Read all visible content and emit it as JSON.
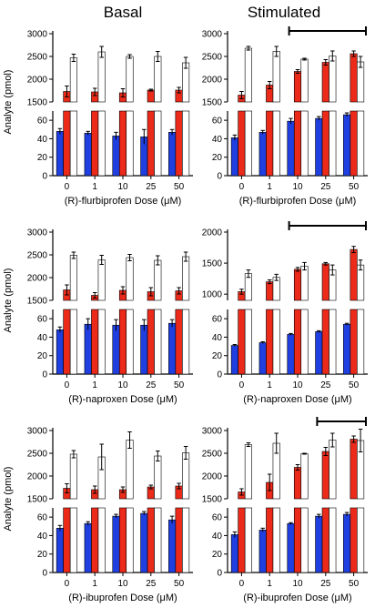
{
  "column_titles": [
    "Basal",
    "Stimulated"
  ],
  "y_axis_label": "Analyte (pmol)",
  "colors": {
    "blue": "#1f3fe0",
    "red": "#ec2a1a",
    "white": "#ffffff",
    "outline": "#000000"
  },
  "chart_data": [
    {
      "type": "bar",
      "row": 0,
      "col": 0,
      "condition": "Basal",
      "xlabel": "(R)-flurbiprofen Dose (μM)",
      "categories": [
        "0",
        "1",
        "10",
        "25",
        "50"
      ],
      "upper_ylim": [
        1500,
        3000
      ],
      "upper_yticks": [
        1500,
        2000,
        2500,
        3000
      ],
      "lower_ylim": [
        0,
        70
      ],
      "lower_yticks": [
        0,
        20,
        40,
        60
      ],
      "series": [
        {
          "color": "blue",
          "values": [
            48,
            46,
            43,
            42,
            47
          ],
          "errors": [
            3,
            2,
            4,
            8,
            3
          ]
        },
        {
          "color": "red",
          "values": [
            1730,
            1720,
            1700,
            1760,
            1760
          ],
          "errors": [
            120,
            80,
            90,
            20,
            60
          ]
        },
        {
          "color": "white",
          "values": [
            2470,
            2600,
            2500,
            2500,
            2360
          ],
          "errors": [
            80,
            120,
            40,
            110,
            120
          ]
        }
      ],
      "significance_bar": false
    },
    {
      "type": "bar",
      "row": 0,
      "col": 1,
      "condition": "Stimulated",
      "xlabel": "(R)-flurbiprofen Dose (μM)",
      "categories": [
        "0",
        "1",
        "10",
        "25",
        "50"
      ],
      "upper_ylim": [
        1500,
        3000
      ],
      "upper_yticks": [
        1500,
        2000,
        2500,
        3000
      ],
      "lower_ylim": [
        0,
        70
      ],
      "lower_yticks": [
        0,
        20,
        40,
        60
      ],
      "series": [
        {
          "color": "blue",
          "values": [
            41,
            47,
            59,
            62,
            66
          ],
          "errors": [
            3,
            2,
            3,
            2,
            2
          ]
        },
        {
          "color": "red",
          "values": [
            1650,
            1870,
            2170,
            2370,
            2560
          ],
          "errors": [
            80,
            80,
            40,
            60,
            60
          ]
        },
        {
          "color": "white",
          "values": [
            2680,
            2610,
            2440,
            2510,
            2380
          ],
          "errors": [
            40,
            110,
            20,
            110,
            120
          ]
        }
      ],
      "significance_bar": true,
      "significance_span": [
        "10",
        "50"
      ]
    },
    {
      "type": "bar",
      "row": 1,
      "col": 0,
      "condition": "Basal",
      "xlabel": "(R)-naproxen Dose (μM)",
      "categories": [
        "0",
        "1",
        "10",
        "25",
        "50"
      ],
      "upper_ylim": [
        1500,
        3000
      ],
      "upper_yticks": [
        1500,
        2000,
        2500,
        3000
      ],
      "lower_ylim": [
        0,
        70
      ],
      "lower_yticks": [
        0,
        20,
        40,
        60
      ],
      "series": [
        {
          "color": "blue",
          "values": [
            48,
            54,
            53,
            53,
            55
          ],
          "errors": [
            3,
            6,
            6,
            6,
            4
          ]
        },
        {
          "color": "red",
          "values": [
            1730,
            1610,
            1720,
            1690,
            1710
          ],
          "errors": [
            110,
            60,
            80,
            90,
            70
          ]
        },
        {
          "color": "white",
          "values": [
            2490,
            2390,
            2440,
            2380,
            2460
          ],
          "errors": [
            70,
            100,
            70,
            100,
            100
          ]
        }
      ],
      "significance_bar": false
    },
    {
      "type": "bar",
      "row": 1,
      "col": 1,
      "condition": "Stimulated",
      "xlabel": "(R)-naproxen Dose (μM)",
      "categories": [
        "0",
        "1",
        "10",
        "25",
        "50"
      ],
      "upper_ylim": [
        900,
        2000
      ],
      "upper_yticks": [
        1000,
        1500,
        2000
      ],
      "lower_ylim": [
        0,
        70
      ],
      "lower_yticks": [
        0,
        20,
        40,
        60
      ],
      "series": [
        {
          "color": "blue",
          "values": [
            31,
            34,
            43,
            46,
            54
          ],
          "errors": [
            1,
            1,
            1,
            1,
            1
          ]
        },
        {
          "color": "red",
          "values": [
            1040,
            1200,
            1400,
            1490,
            1720
          ],
          "errors": [
            40,
            30,
            30,
            20,
            50
          ]
        },
        {
          "color": "white",
          "values": [
            1330,
            1270,
            1450,
            1390,
            1470
          ],
          "errors": [
            60,
            50,
            60,
            80,
            80
          ]
        }
      ],
      "significance_bar": true,
      "significance_span": [
        "10",
        "50"
      ]
    },
    {
      "type": "bar",
      "row": 2,
      "col": 0,
      "condition": "Basal",
      "xlabel": "(R)-ibuprofen Dose (μM)",
      "categories": [
        "0",
        "1",
        "10",
        "25",
        "50"
      ],
      "upper_ylim": [
        1500,
        3000
      ],
      "upper_yticks": [
        1500,
        2000,
        2500,
        3000
      ],
      "lower_ylim": [
        0,
        70
      ],
      "lower_yticks": [
        0,
        20,
        40,
        60
      ],
      "series": [
        {
          "color": "blue",
          "values": [
            48,
            53,
            61,
            64,
            57
          ],
          "errors": [
            3,
            2,
            2,
            2,
            4
          ]
        },
        {
          "color": "red",
          "values": [
            1730,
            1700,
            1700,
            1760,
            1780
          ],
          "errors": [
            100,
            80,
            60,
            40,
            60
          ]
        },
        {
          "color": "white",
          "values": [
            2480,
            2420,
            2790,
            2440,
            2510
          ],
          "errors": [
            80,
            280,
            180,
            110,
            140
          ]
        }
      ],
      "significance_bar": false
    },
    {
      "type": "bar",
      "row": 2,
      "col": 1,
      "condition": "Stimulated",
      "xlabel": "(R)-ibuprofen Dose (μM)",
      "categories": [
        "0",
        "1",
        "10",
        "25",
        "50"
      ],
      "upper_ylim": [
        1500,
        3000
      ],
      "upper_yticks": [
        1500,
        2000,
        2500,
        3000
      ],
      "lower_ylim": [
        0,
        70
      ],
      "lower_yticks": [
        0,
        20,
        40,
        60
      ],
      "series": [
        {
          "color": "blue",
          "values": [
            41,
            46,
            53,
            61,
            63
          ],
          "errors": [
            3,
            2,
            1,
            2,
            2
          ]
        },
        {
          "color": "red",
          "values": [
            1650,
            1860,
            2190,
            2540,
            2810
          ],
          "errors": [
            70,
            180,
            60,
            90,
            70
          ]
        },
        {
          "color": "white",
          "values": [
            2690,
            2720,
            2490,
            2790,
            2780
          ],
          "errors": [
            40,
            220,
            10,
            150,
            250
          ]
        }
      ],
      "significance_bar": true,
      "significance_span": [
        "25",
        "50"
      ]
    }
  ]
}
